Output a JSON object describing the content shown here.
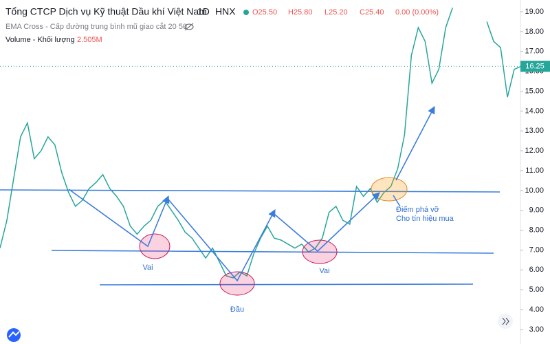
{
  "header": {
    "title": "Tổng CTCP Dịch vụ Kỹ thuật Dầu khí Việt Nam",
    "interval": "1D",
    "exchange": "HNX",
    "open": "O25.50",
    "high": "H25.80",
    "low": "L25.20",
    "close": "C25.40",
    "change": "0.00 (0.00%)",
    "indicator": "EMA Cross - Cấp đường trung bình mũ giao cắt 20 50",
    "volume_label": "Volume - Khối lượng",
    "volume_value": "2.505M"
  },
  "chart_data": {
    "type": "line",
    "color": "#26a69a",
    "values": [
      7.1,
      8.5,
      10.6,
      12.7,
      13.4,
      11.6,
      12.0,
      12.7,
      12.3,
      10.9,
      9.9,
      9.2,
      9.5,
      10.1,
      10.4,
      10.8,
      10.1,
      9.7,
      9.2,
      8.2,
      7.8,
      8.2,
      8.5,
      9.2,
      9.5,
      9.0,
      8.5,
      7.9,
      7.6,
      7.1,
      6.6,
      7.1,
      6.4,
      5.7,
      5.6,
      5.9,
      5.7,
      6.8,
      7.6,
      8.2,
      7.6,
      7.5,
      7.3,
      7.1,
      7.3,
      6.9,
      7.1,
      7.6,
      8.9,
      9.2,
      8.5,
      8.3,
      10.2,
      9.7,
      10.1,
      9.4,
      9.9,
      10.2,
      11.1,
      12.8,
      16.8,
      18.2,
      17.5,
      15.4,
      16.1,
      18.2,
      19.2,
      null,
      null,
      null,
      null,
      18.5,
      17.5,
      17.2,
      14.7,
      16.1,
      16.25
    ],
    "ylim": [
      2.27,
      19.59
    ],
    "yticks": [
      {
        "value": 3,
        "label": "3.00"
      },
      {
        "value": 4,
        "label": "4.00"
      },
      {
        "value": 5,
        "label": "5.00"
      },
      {
        "value": 6,
        "label": "6.00"
      },
      {
        "value": 7,
        "label": "7.00"
      },
      {
        "value": 8,
        "label": "8.00"
      },
      {
        "value": 9,
        "label": "9.00"
      },
      {
        "value": 10,
        "label": "10.00"
      },
      {
        "value": 11,
        "label": "11.00"
      },
      {
        "value": 12,
        "label": "12.00"
      },
      {
        "value": 13,
        "label": "13.00"
      },
      {
        "value": 14,
        "label": "14.00"
      },
      {
        "value": 15,
        "label": "15.00"
      },
      {
        "value": 16,
        "label": "16.00"
      },
      {
        "value": 17,
        "label": "17.00"
      },
      {
        "value": 18,
        "label": "18.00"
      },
      {
        "value": 19,
        "label": "19.00"
      }
    ],
    "last_price": 16.25,
    "annotations": {
      "left_shoulder": "Vai",
      "head": "Đầu",
      "right_shoulder": "Vai",
      "breakout_line1": "Điểm phá vỡ",
      "breakout_line2": "Cho tín hiệu mua"
    }
  }
}
